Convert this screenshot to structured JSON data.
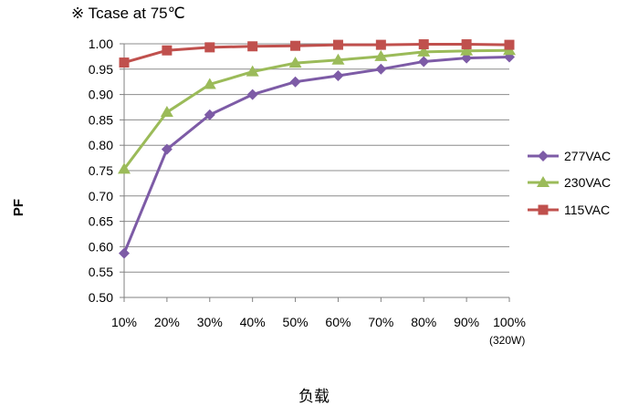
{
  "chart_data": {
    "type": "line",
    "annotation": "※ Tcase at 75℃",
    "xlabel": "负载",
    "xlabel_note": "(320W)",
    "ylabel": "PF",
    "categories": [
      "10%",
      "20%",
      "30%",
      "40%",
      "50%",
      "60%",
      "70%",
      "80%",
      "90%",
      "100%"
    ],
    "ylim": [
      0.5,
      1.0
    ],
    "yticks": [
      "0.50",
      "0.55",
      "0.60",
      "0.65",
      "0.70",
      "0.75",
      "0.80",
      "0.85",
      "0.90",
      "0.95",
      "1.00"
    ],
    "grid": "horizontal",
    "legend_position": "right",
    "series": [
      {
        "name": "277VAC",
        "color": "#7D5BA6",
        "marker": "diamond",
        "values": [
          0.587,
          0.792,
          0.86,
          0.9,
          0.925,
          0.937,
          0.95,
          0.965,
          0.972,
          0.974
        ]
      },
      {
        "name": "230VAC",
        "color": "#9BBB59",
        "marker": "triangle",
        "values": [
          0.753,
          0.865,
          0.92,
          0.945,
          0.962,
          0.968,
          0.975,
          0.984,
          0.986,
          0.987
        ]
      },
      {
        "name": "115VAC",
        "color": "#C0504D",
        "marker": "square",
        "values": [
          0.963,
          0.987,
          0.993,
          0.995,
          0.996,
          0.998,
          0.998,
          0.999,
          0.999,
          0.998
        ]
      }
    ]
  }
}
